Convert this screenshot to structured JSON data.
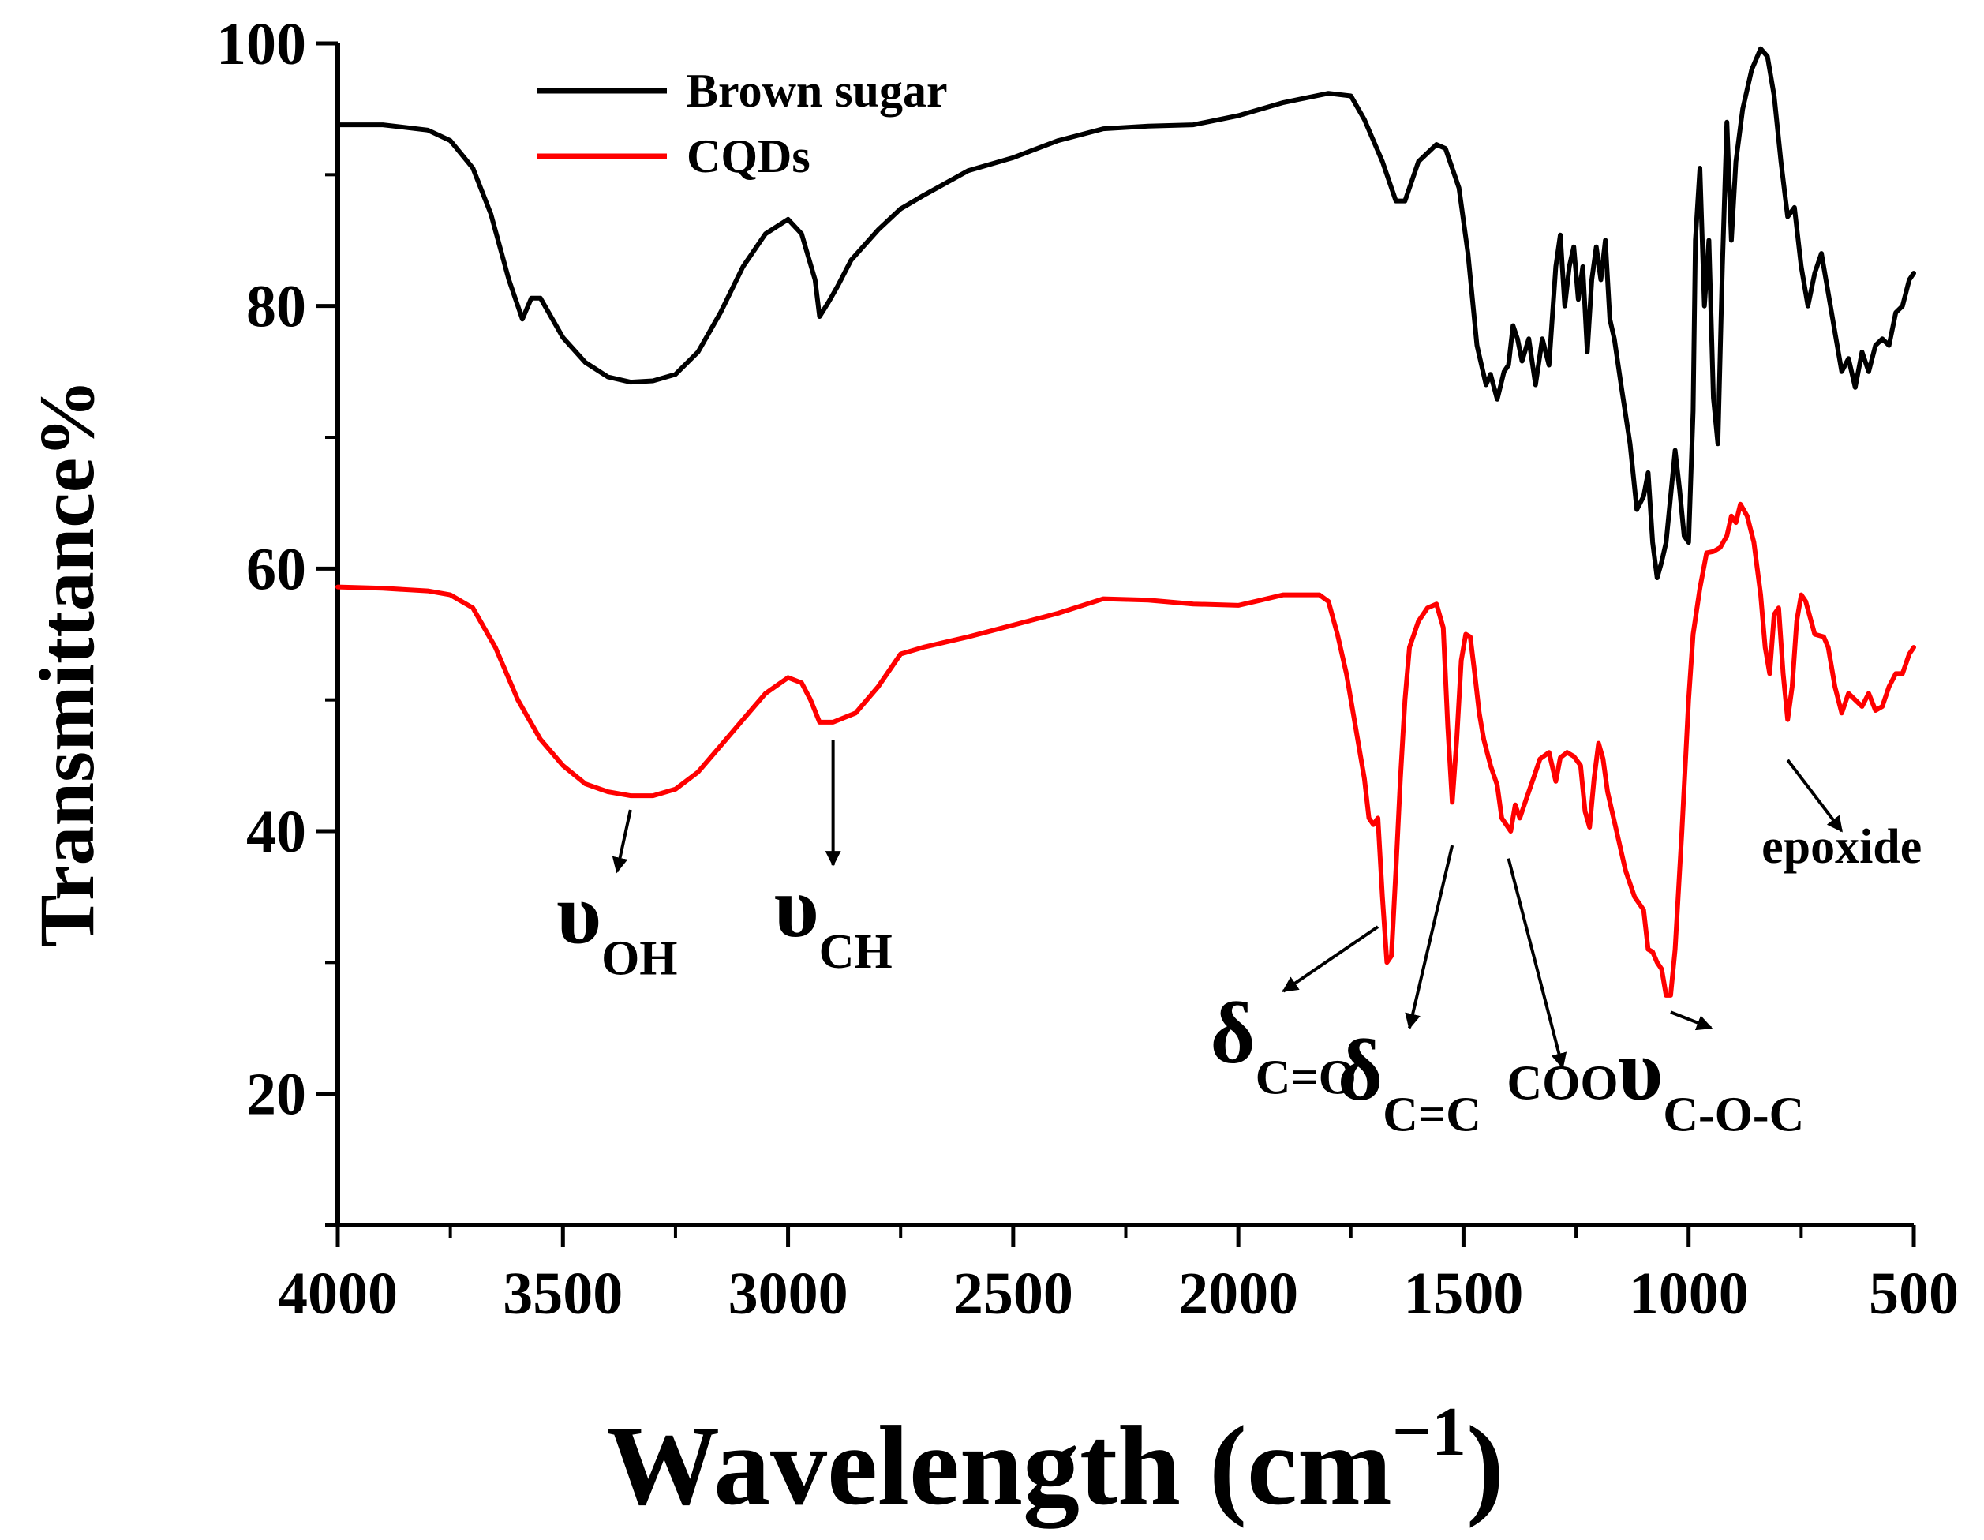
{
  "chart_data": {
    "type": "line",
    "title": "",
    "xlabel": "Wavelength (cm",
    "xlabel_sup": "−1",
    "xlabel_close": ")",
    "ylabel": "Transmittance%",
    "xlim": [
      4000,
      500
    ],
    "ylim": [
      10,
      100
    ],
    "x_reversed": true,
    "x_ticks": [
      4000,
      3500,
      3000,
      2500,
      2000,
      1500,
      1000,
      500
    ],
    "y_ticks": [
      20,
      40,
      60,
      80,
      100
    ],
    "grid": false,
    "legend_position": "top-left",
    "series": [
      {
        "name": "Brown sugar",
        "color": "#000000",
        "points": [
          [
            4000,
            93.8
          ],
          [
            3900,
            93.8
          ],
          [
            3800,
            93.4
          ],
          [
            3750,
            92.6
          ],
          [
            3700,
            90.5
          ],
          [
            3660,
            87
          ],
          [
            3620,
            82
          ],
          [
            3590,
            79
          ],
          [
            3570,
            80.6
          ],
          [
            3550,
            80.6
          ],
          [
            3500,
            77.6
          ],
          [
            3450,
            75.7
          ],
          [
            3400,
            74.6
          ],
          [
            3350,
            74.2
          ],
          [
            3300,
            74.3
          ],
          [
            3250,
            74.8
          ],
          [
            3200,
            76.5
          ],
          [
            3150,
            79.5
          ],
          [
            3100,
            83
          ],
          [
            3050,
            85.5
          ],
          [
            3000,
            86.6
          ],
          [
            2970,
            85.5
          ],
          [
            2940,
            82
          ],
          [
            2930,
            79.2
          ],
          [
            2910,
            80.3
          ],
          [
            2890,
            81.5
          ],
          [
            2860,
            83.5
          ],
          [
            2800,
            85.8
          ],
          [
            2750,
            87.4
          ],
          [
            2700,
            88.4
          ],
          [
            2600,
            90.3
          ],
          [
            2500,
            91.3
          ],
          [
            2400,
            92.6
          ],
          [
            2300,
            93.5
          ],
          [
            2200,
            93.7
          ],
          [
            2100,
            93.8
          ],
          [
            2000,
            94.5
          ],
          [
            1900,
            95.5
          ],
          [
            1800,
            96.2
          ],
          [
            1750,
            96
          ],
          [
            1720,
            94.2
          ],
          [
            1680,
            91
          ],
          [
            1650,
            88
          ],
          [
            1630,
            88
          ],
          [
            1600,
            91
          ],
          [
            1560,
            92.3
          ],
          [
            1540,
            92
          ],
          [
            1510,
            89
          ],
          [
            1490,
            84
          ],
          [
            1470,
            77
          ],
          [
            1450,
            74
          ],
          [
            1440,
            74.8
          ],
          [
            1425,
            72.9
          ],
          [
            1410,
            75
          ],
          [
            1400,
            75.5
          ],
          [
            1390,
            78.5
          ],
          [
            1380,
            77.5
          ],
          [
            1370,
            75.8
          ],
          [
            1355,
            77.5
          ],
          [
            1340,
            74
          ],
          [
            1325,
            77.5
          ],
          [
            1310,
            75.5
          ],
          [
            1295,
            83
          ],
          [
            1285,
            85.4
          ],
          [
            1275,
            80
          ],
          [
            1265,
            83
          ],
          [
            1255,
            84.5
          ],
          [
            1245,
            80.5
          ],
          [
            1235,
            83
          ],
          [
            1225,
            76.5
          ],
          [
            1215,
            82
          ],
          [
            1205,
            84.5
          ],
          [
            1195,
            82
          ],
          [
            1185,
            85
          ],
          [
            1175,
            79
          ],
          [
            1165,
            77.5
          ],
          [
            1150,
            74
          ],
          [
            1130,
            69.5
          ],
          [
            1115,
            64.5
          ],
          [
            1100,
            65.5
          ],
          [
            1090,
            67.3
          ],
          [
            1080,
            62
          ],
          [
            1070,
            59.3
          ],
          [
            1060,
            60.5
          ],
          [
            1050,
            62
          ],
          [
            1040,
            65.5
          ],
          [
            1030,
            69
          ],
          [
            1020,
            66
          ],
          [
            1010,
            62.5
          ],
          [
            1000,
            62
          ],
          [
            990,
            72
          ],
          [
            985,
            85
          ],
          [
            975,
            90.5
          ],
          [
            965,
            80
          ],
          [
            955,
            85
          ],
          [
            945,
            73
          ],
          [
            935,
            69.5
          ],
          [
            925,
            83
          ],
          [
            915,
            94
          ],
          [
            905,
            85
          ],
          [
            895,
            91
          ],
          [
            880,
            95
          ],
          [
            860,
            98
          ],
          [
            840,
            99.6
          ],
          [
            825,
            99
          ],
          [
            810,
            96
          ],
          [
            795,
            91
          ],
          [
            780,
            86.8
          ],
          [
            765,
            87.5
          ],
          [
            750,
            83
          ],
          [
            735,
            80
          ],
          [
            720,
            82.5
          ],
          [
            705,
            84
          ],
          [
            690,
            81
          ],
          [
            675,
            78
          ],
          [
            660,
            75
          ],
          [
            645,
            76
          ],
          [
            630,
            73.8
          ],
          [
            615,
            76.5
          ],
          [
            600,
            75
          ],
          [
            585,
            77
          ],
          [
            570,
            77.5
          ],
          [
            555,
            77
          ],
          [
            540,
            79.5
          ],
          [
            525,
            80
          ],
          [
            510,
            82
          ],
          [
            500,
            82.5
          ]
        ]
      },
      {
        "name": "CQDs",
        "color": "#ff0000",
        "points": [
          [
            4000,
            58.6
          ],
          [
            3900,
            58.5
          ],
          [
            3800,
            58.3
          ],
          [
            3750,
            58
          ],
          [
            3700,
            57
          ],
          [
            3650,
            54
          ],
          [
            3600,
            50
          ],
          [
            3550,
            47
          ],
          [
            3500,
            45
          ],
          [
            3450,
            43.6
          ],
          [
            3400,
            43
          ],
          [
            3350,
            42.7
          ],
          [
            3300,
            42.7
          ],
          [
            3250,
            43.2
          ],
          [
            3200,
            44.5
          ],
          [
            3150,
            46.5
          ],
          [
            3100,
            48.5
          ],
          [
            3050,
            50.5
          ],
          [
            3000,
            51.7
          ],
          [
            2970,
            51.3
          ],
          [
            2950,
            50
          ],
          [
            2930,
            48.3
          ],
          [
            2900,
            48.3
          ],
          [
            2850,
            49
          ],
          [
            2800,
            51
          ],
          [
            2750,
            53.5
          ],
          [
            2700,
            54
          ],
          [
            2600,
            54.8
          ],
          [
            2500,
            55.7
          ],
          [
            2400,
            56.6
          ],
          [
            2300,
            57.7
          ],
          [
            2200,
            57.6
          ],
          [
            2100,
            57.3
          ],
          [
            2000,
            57.2
          ],
          [
            1950,
            57.6
          ],
          [
            1900,
            58
          ],
          [
            1850,
            58
          ],
          [
            1820,
            58
          ],
          [
            1800,
            57.5
          ],
          [
            1780,
            55
          ],
          [
            1760,
            52
          ],
          [
            1740,
            48
          ],
          [
            1720,
            44
          ],
          [
            1710,
            41
          ],
          [
            1700,
            40.5
          ],
          [
            1690,
            41
          ],
          [
            1680,
            35
          ],
          [
            1670,
            30
          ],
          [
            1660,
            30.5
          ],
          [
            1650,
            37
          ],
          [
            1640,
            44
          ],
          [
            1630,
            50
          ],
          [
            1620,
            54
          ],
          [
            1600,
            56
          ],
          [
            1580,
            57
          ],
          [
            1560,
            57.3
          ],
          [
            1545,
            55.5
          ],
          [
            1535,
            48
          ],
          [
            1525,
            42.2
          ],
          [
            1515,
            47
          ],
          [
            1505,
            53
          ],
          [
            1495,
            55
          ],
          [
            1485,
            54.8
          ],
          [
            1475,
            52
          ],
          [
            1465,
            49
          ],
          [
            1455,
            47
          ],
          [
            1440,
            45
          ],
          [
            1425,
            43.5
          ],
          [
            1415,
            41
          ],
          [
            1405,
            40.5
          ],
          [
            1395,
            40
          ],
          [
            1385,
            42
          ],
          [
            1375,
            41
          ],
          [
            1360,
            42.5
          ],
          [
            1345,
            44
          ],
          [
            1330,
            45.5
          ],
          [
            1310,
            46
          ],
          [
            1295,
            43.8
          ],
          [
            1285,
            45.6
          ],
          [
            1270,
            46
          ],
          [
            1255,
            45.7
          ],
          [
            1240,
            45
          ],
          [
            1230,
            41.5
          ],
          [
            1220,
            40.3
          ],
          [
            1210,
            44
          ],
          [
            1200,
            46.7
          ],
          [
            1190,
            45.5
          ],
          [
            1180,
            43
          ],
          [
            1160,
            40
          ],
          [
            1140,
            37
          ],
          [
            1120,
            35
          ],
          [
            1100,
            34
          ],
          [
            1090,
            31
          ],
          [
            1080,
            30.8
          ],
          [
            1070,
            30
          ],
          [
            1060,
            29.5
          ],
          [
            1050,
            27.5
          ],
          [
            1040,
            27.5
          ],
          [
            1030,
            31
          ],
          [
            1015,
            40
          ],
          [
            1000,
            50
          ],
          [
            990,
            55
          ],
          [
            975,
            58.5
          ],
          [
            960,
            61.2
          ],
          [
            945,
            61.3
          ],
          [
            930,
            61.6
          ],
          [
            915,
            62.5
          ],
          [
            905,
            64
          ],
          [
            895,
            63.5
          ],
          [
            885,
            64.9
          ],
          [
            870,
            64
          ],
          [
            855,
            62
          ],
          [
            840,
            58
          ],
          [
            830,
            54
          ],
          [
            820,
            52
          ],
          [
            810,
            56.5
          ],
          [
            800,
            57
          ],
          [
            790,
            52
          ],
          [
            780,
            48.5
          ],
          [
            770,
            51
          ],
          [
            760,
            56
          ],
          [
            750,
            58
          ],
          [
            740,
            57.5
          ],
          [
            720,
            55
          ],
          [
            700,
            54.8
          ],
          [
            690,
            54
          ],
          [
            675,
            51
          ],
          [
            660,
            49
          ],
          [
            645,
            50.5
          ],
          [
            630,
            50
          ],
          [
            615,
            49.5
          ],
          [
            600,
            50.5
          ],
          [
            585,
            49.2
          ],
          [
            570,
            49.5
          ],
          [
            555,
            51
          ],
          [
            540,
            52
          ],
          [
            525,
            52
          ],
          [
            510,
            53.5
          ],
          [
            500,
            54
          ]
        ]
      }
    ],
    "annotations": [
      {
        "symbol": "υ",
        "sub": "OH",
        "peak": [
          3350,
          42.7
        ],
        "label": [
          3380,
          31.5
        ]
      },
      {
        "symbol": "υ",
        "sub": "CH",
        "peak": [
          2900,
          48
        ],
        "label": [
          2900,
          32
        ]
      },
      {
        "symbol": "δ",
        "sub": "C=O",
        "peak": [
          1690,
          33.8
        ],
        "label": [
          1900,
          22.4
        ]
      },
      {
        "symbol": "δ",
        "sub": "C=C",
        "peak": [
          1525,
          40
        ],
        "label": [
          1620,
          19.6
        ]
      },
      {
        "symbol": "",
        "sub": "COO",
        "peak": [
          1400,
          39
        ],
        "label": [
          1280,
          19.6
        ]
      },
      {
        "symbol": "υ",
        "sub": "C-O-C",
        "peak": [
          1040,
          27.3
        ],
        "label": [
          950,
          19.6
        ]
      },
      {
        "symbol": "",
        "sub": "epoxide",
        "peak": [
          780,
          46.5
        ],
        "label": [
          660,
          37.6
        ]
      }
    ]
  }
}
